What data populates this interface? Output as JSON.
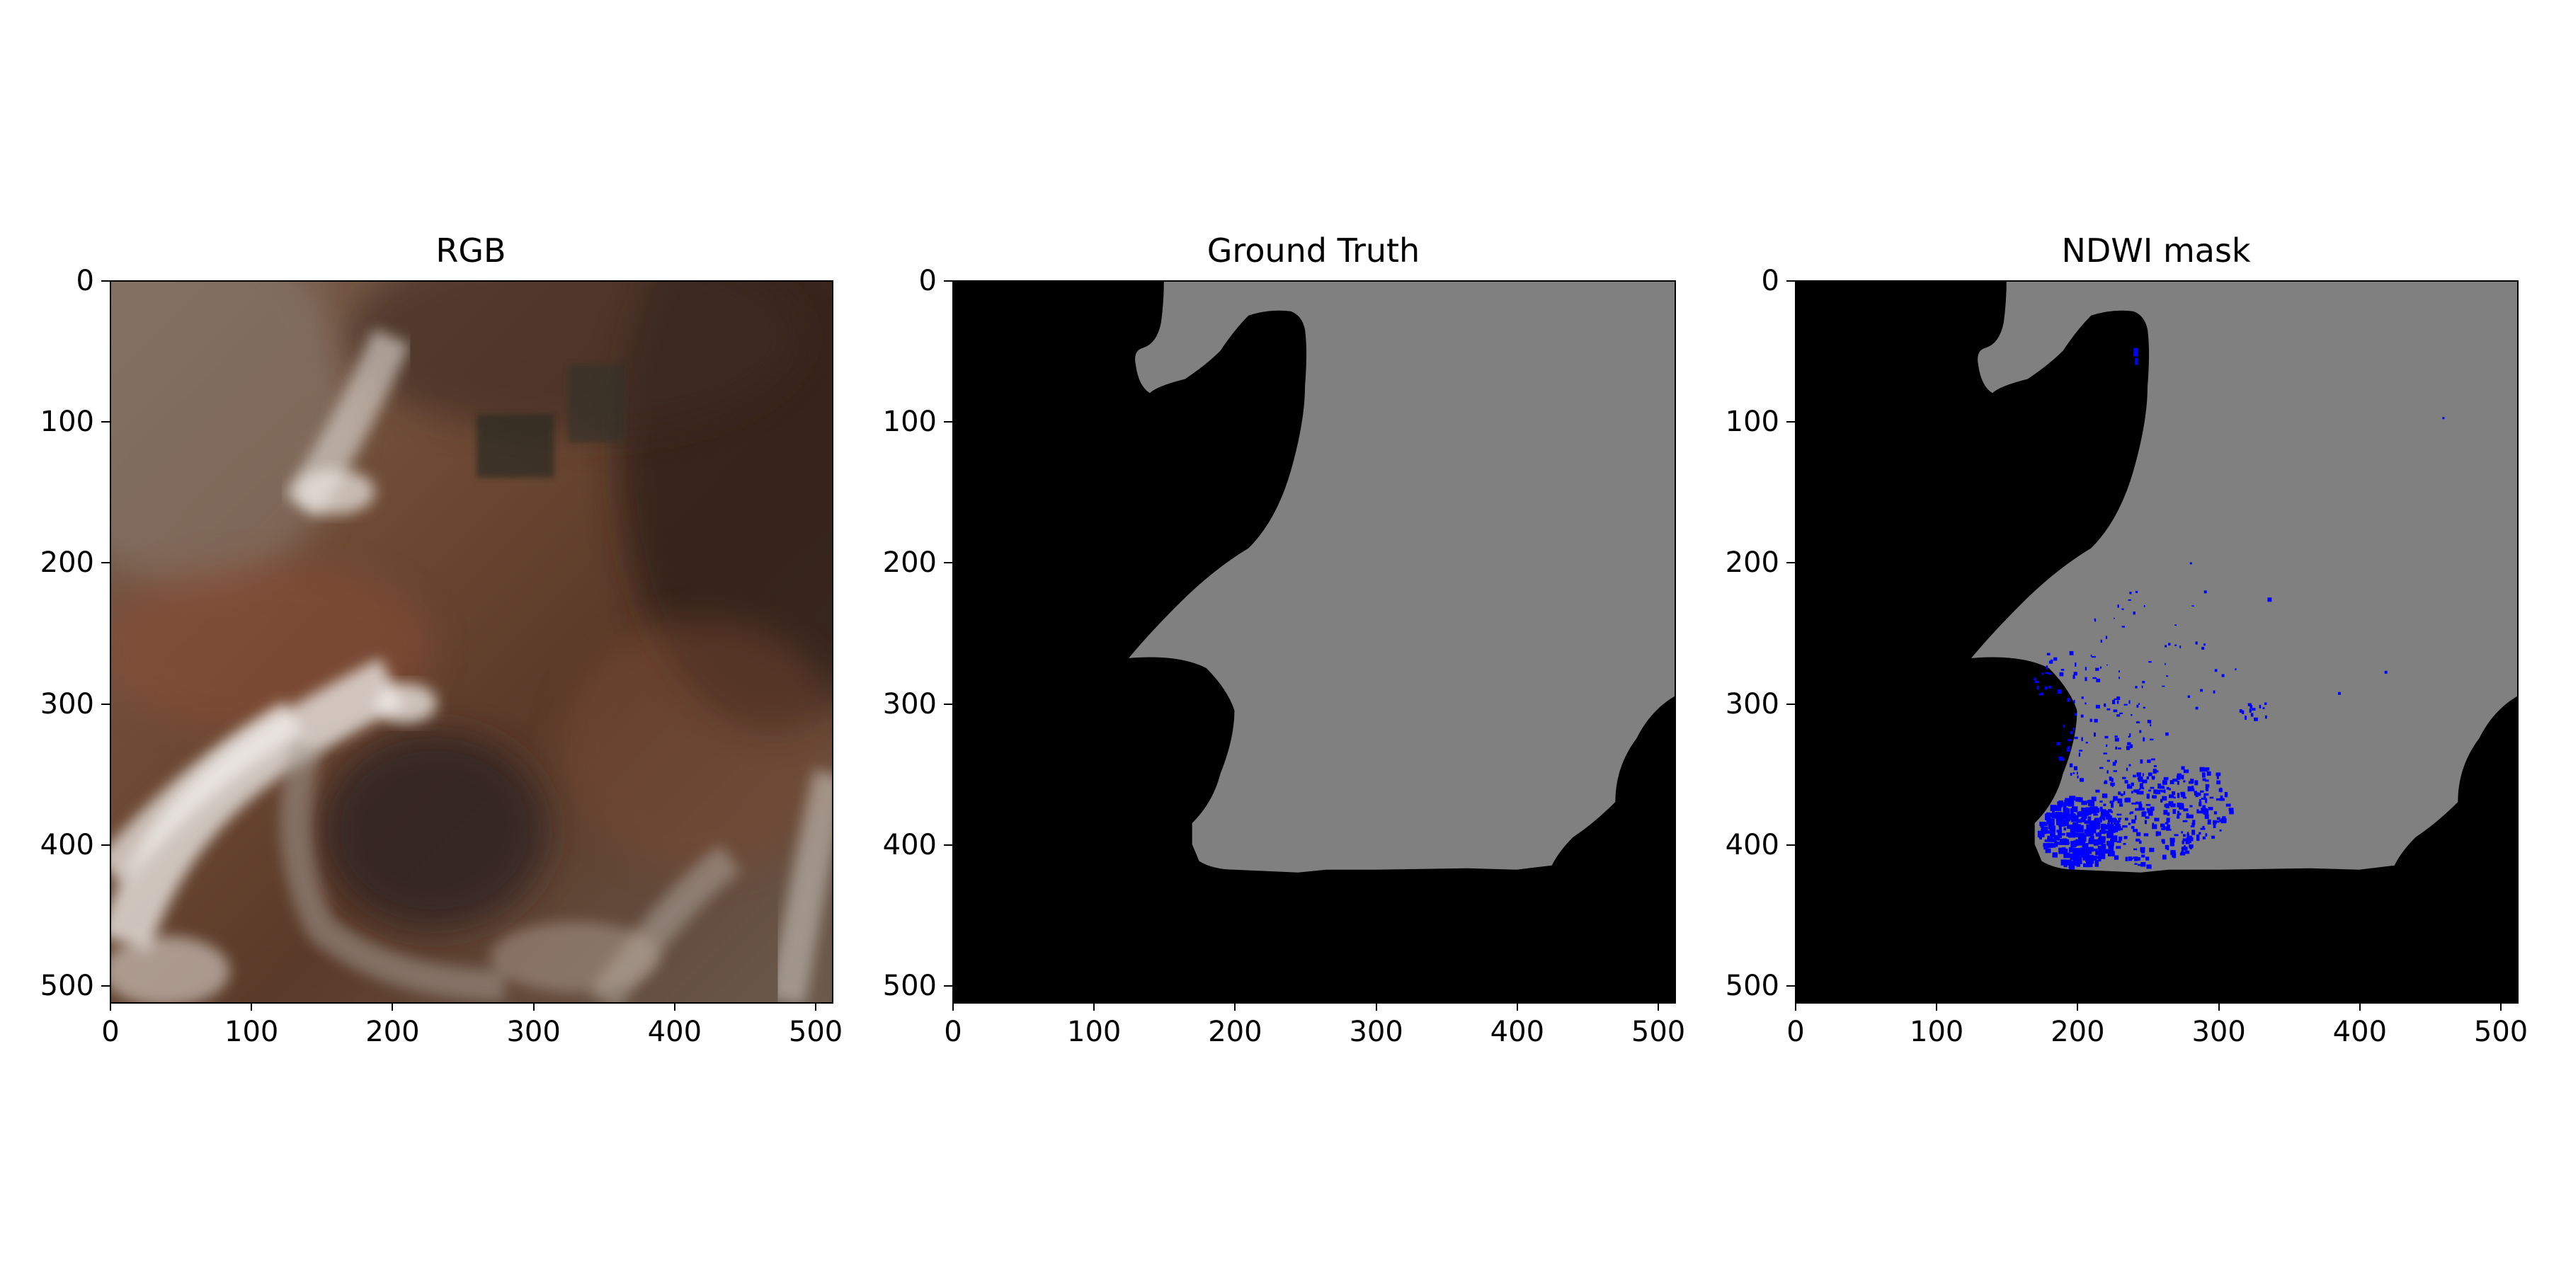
{
  "figure": {
    "panels": [
      {
        "title": "RGB"
      },
      {
        "title": "Ground Truth"
      },
      {
        "title": "NDWI mask"
      }
    ],
    "x_ticks": [
      "0",
      "100",
      "200",
      "300",
      "400",
      "500"
    ],
    "y_ticks": [
      "0",
      "100",
      "200",
      "300",
      "400",
      "500"
    ],
    "axis_range": [
      0,
      511
    ]
  },
  "colors": {
    "background_class": "#000000",
    "ground_truth_class": "#808080",
    "ndwi_water": "#0000ff"
  }
}
